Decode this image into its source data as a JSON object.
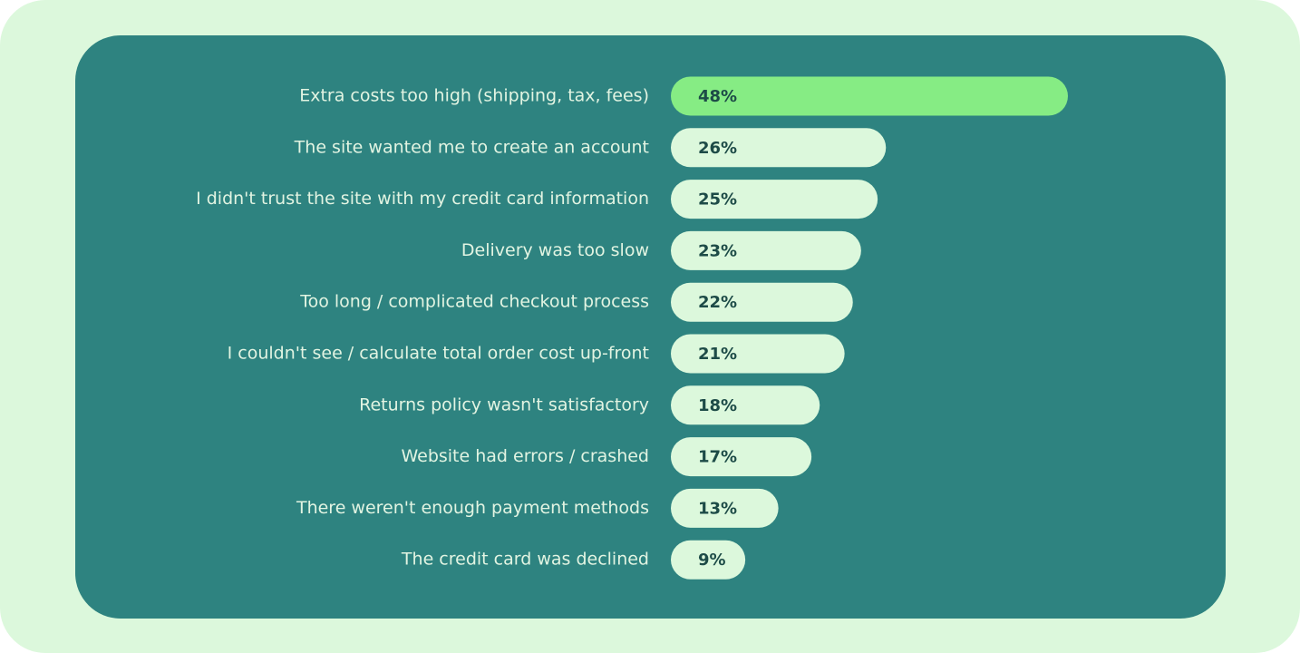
{
  "chart_data": {
    "type": "bar",
    "orientation": "horizontal",
    "categories": [
      "Extra costs too high (shipping, tax, fees)",
      "The site wanted me to create an account",
      "I didn't trust the site with my credit card information",
      "Delivery was too slow",
      "Too long / complicated checkout process",
      "I couldn't see / calculate total order cost up-front",
      "Returns policy wasn't satisfactory",
      "Website had errors / crashed",
      "There weren't enough payment methods",
      "The credit card was declined"
    ],
    "values": [
      48,
      26,
      25,
      23,
      22,
      21,
      18,
      17,
      13,
      9
    ],
    "value_labels": [
      "48%",
      "26%",
      "25%",
      "23%",
      "22%",
      "21%",
      "18%",
      "17%",
      "13%",
      "9%"
    ],
    "colors": [
      "#86ec84",
      "#dcf8dc",
      "#dcf8dc",
      "#dcf8dc",
      "#dcf8dc",
      "#dcf8dc",
      "#dcf8dc",
      "#dcf8dc",
      "#dcf8dc",
      "#dcf8dc"
    ]
  }
}
